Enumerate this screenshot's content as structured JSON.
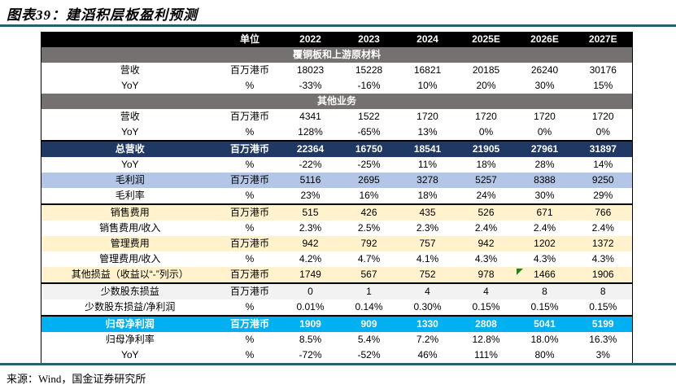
{
  "title": "图表39：建滔积层板盈利预测",
  "source": "来源：Wind，国金证券研究所",
  "colors": {
    "header_bg": "#000000",
    "section_bg": "#767171",
    "total_row_bg": "#1F3864",
    "gross_row_bg": "#B4C6E7",
    "expense_row_bg": "#FFF2CC",
    "net_row_bg": "#00B0F0",
    "minor_row_bg": "#F2F2F2",
    "rule_color": "#2A5E74",
    "flag_color": "#178717"
  },
  "table": {
    "columns": [
      "单位",
      "2022",
      "2023",
      "2024",
      "2025E",
      "2026E",
      "2027E"
    ],
    "rows": [
      {
        "type": "section",
        "label": "覆铜板和上游原材料"
      },
      {
        "type": "data",
        "label": "营收",
        "unit": "百万港币",
        "values": [
          "18023",
          "15228",
          "16821",
          "20185",
          "26240",
          "30176"
        ]
      },
      {
        "type": "data",
        "label": "YoY",
        "unit": "%",
        "values": [
          "-33%",
          "-16%",
          "10%",
          "20%",
          "30%",
          "15%"
        ]
      },
      {
        "type": "section",
        "label": "其他业务"
      },
      {
        "type": "data",
        "label": "营收",
        "unit": "百万港币",
        "values": [
          "4341",
          "1522",
          "1720",
          "1720",
          "1720",
          "1720"
        ]
      },
      {
        "type": "data",
        "label": "YoY",
        "unit": "%",
        "values": [
          "128%",
          "-65%",
          "13%",
          "0%",
          "0%",
          "0%"
        ]
      },
      {
        "type": "total",
        "divTop": true,
        "label": "总营收",
        "unit": "百万港币",
        "values": [
          "22364",
          "16750",
          "18541",
          "21905",
          "27961",
          "31897"
        ]
      },
      {
        "type": "data",
        "label": "YoY",
        "unit": "%",
        "values": [
          "-22%",
          "-25%",
          "11%",
          "18%",
          "28%",
          "14%"
        ]
      },
      {
        "type": "gross",
        "label": "毛利润",
        "unit": "百万港币",
        "values": [
          "5116",
          "2695",
          "3278",
          "5257",
          "8388",
          "9250"
        ]
      },
      {
        "type": "data",
        "divBottom": true,
        "label": "毛利率",
        "unit": "%",
        "values": [
          "23%",
          "16%",
          "18%",
          "24%",
          "30%",
          "29%"
        ]
      },
      {
        "type": "expense",
        "label": "销售费用",
        "unit": "百万港币",
        "values": [
          "515",
          "426",
          "435",
          "526",
          "671",
          "766"
        ]
      },
      {
        "type": "data",
        "label": "销售费用/收入",
        "unit": "%",
        "values": [
          "2.3%",
          "2.5%",
          "2.3%",
          "2.4%",
          "2.4%",
          "2.4%"
        ]
      },
      {
        "type": "expense",
        "label": "管理费用",
        "unit": "百万港币",
        "values": [
          "942",
          "792",
          "757",
          "942",
          "1202",
          "1372"
        ]
      },
      {
        "type": "data",
        "label": "管理费用/收入",
        "unit": "%",
        "values": [
          "4.2%",
          "4.7%",
          "4.1%",
          "4.3%",
          "4.3%",
          "4.3%"
        ]
      },
      {
        "type": "expense",
        "divBottom": true,
        "flagCol": 4,
        "label": "其他损益（收益以“-”列示）",
        "unit": "百万港币",
        "values": [
          "1749",
          "567",
          "752",
          "978",
          "1466",
          "1906"
        ]
      },
      {
        "type": "gray",
        "label": "少数股东损益",
        "unit": "百万港币",
        "values": [
          "0",
          "1",
          "4",
          "4",
          "8",
          "8"
        ]
      },
      {
        "type": "data",
        "label": "少数股东损益/净利润",
        "unit": "%",
        "values": [
          "0.01%",
          "0.14%",
          "0.30%",
          "0.15%",
          "0.15%",
          "0.15%"
        ]
      },
      {
        "type": "net",
        "divTop": true,
        "label": "归母净利润",
        "unit": "百万港币",
        "values": [
          "1909",
          "909",
          "1330",
          "2808",
          "5041",
          "5199"
        ]
      },
      {
        "type": "data",
        "label": "归母净利率",
        "unit": "%",
        "values": [
          "8.5%",
          "5.4%",
          "7.2%",
          "12.8%",
          "18.0%",
          "16.3%"
        ]
      },
      {
        "type": "data",
        "divBottom": true,
        "label": "YoY",
        "unit": "%",
        "values": [
          "-72%",
          "-52%",
          "46%",
          "111%",
          "80%",
          "3%"
        ]
      }
    ]
  }
}
